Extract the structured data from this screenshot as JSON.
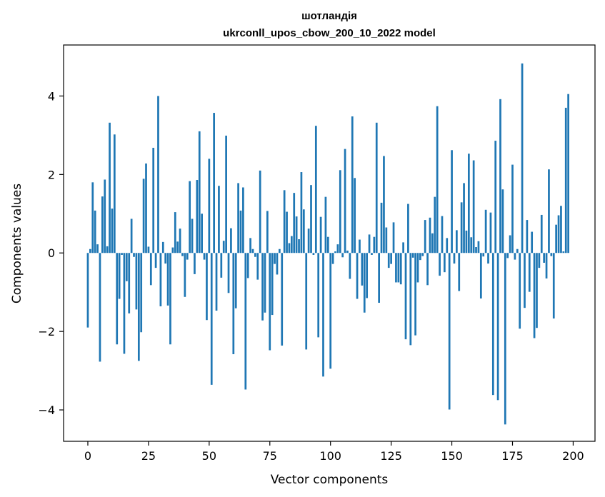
{
  "chart_data": {
    "type": "bar",
    "title_line1": "шотландія",
    "title_line2": "ukrconll_upos_cbow_200_10_2022 model",
    "xlabel": "Vector components",
    "ylabel": "Components values",
    "xlim": [
      -10,
      209
    ],
    "ylim": [
      -4.8,
      5.3
    ],
    "xticks": [
      0,
      25,
      50,
      75,
      100,
      125,
      150,
      175,
      200
    ],
    "yticks": [
      -4,
      -2,
      0,
      2,
      4
    ],
    "ytick_labels": [
      "−4",
      "−2",
      "0",
      "2",
      "4"
    ],
    "bar_color": "#1f77b4",
    "values": [
      -1.9,
      0.1,
      1.8,
      1.08,
      0.22,
      -2.77,
      1.44,
      1.87,
      0.17,
      3.32,
      1.13,
      3.02,
      -2.33,
      -1.17,
      -0.05,
      -2.57,
      -0.72,
      -1.54,
      0.87,
      -0.1,
      -1.44,
      -2.75,
      -2.02,
      1.89,
      2.28,
      0.16,
      -0.82,
      2.68,
      -0.38,
      4.0,
      -1.36,
      0.28,
      -0.27,
      -1.34,
      -2.33,
      0.14,
      1.04,
      0.29,
      0.62,
      -0.08,
      -1.12,
      -0.17,
      1.83,
      0.87,
      -0.54,
      1.86,
      3.1,
      1.0,
      -0.17,
      -1.71,
      2.4,
      -3.36,
      3.57,
      -1.47,
      1.71,
      -0.63,
      0.31,
      2.99,
      -1.02,
      0.63,
      -2.58,
      -1.41,
      1.78,
      1.08,
      1.67,
      -3.48,
      -0.64,
      0.38,
      0.1,
      -0.1,
      -0.68,
      2.1,
      -1.72,
      -1.52,
      1.07,
      -2.48,
      -1.58,
      -0.28,
      -0.55,
      0.1,
      -2.36,
      1.6,
      1.05,
      0.25,
      0.43,
      1.53,
      0.93,
      0.35,
      2.06,
      1.11,
      -2.46,
      0.62,
      1.73,
      -0.05,
      3.24,
      -2.15,
      0.92,
      -3.15,
      1.43,
      0.41,
      -2.95,
      -0.28,
      0.04,
      0.22,
      2.11,
      -0.11,
      2.65,
      0.06,
      -0.66,
      3.48,
      1.91,
      -1.17,
      0.34,
      -0.83,
      -1.52,
      -1.15,
      0.47,
      -0.05,
      0.41,
      3.32,
      -1.27,
      1.28,
      2.47,
      0.65,
      -0.38,
      -0.28,
      0.78,
      -0.75,
      -0.75,
      -0.8,
      0.27,
      -2.2,
      1.25,
      -2.35,
      -0.12,
      -2.1,
      -0.75,
      -0.18,
      -0.08,
      0.84,
      -0.82,
      0.9,
      0.5,
      1.43,
      3.74,
      -0.58,
      0.94,
      -0.49,
      0.38,
      -3.99,
      2.62,
      -0.27,
      0.58,
      -0.97,
      1.29,
      1.78,
      0.57,
      2.53,
      0.4,
      2.36,
      0.15,
      0.3,
      -1.16,
      -0.09,
      1.1,
      -0.27,
      1.03,
      -3.62,
      2.86,
      -3.75,
      3.92,
      1.62,
      -4.37,
      -0.13,
      0.45,
      2.25,
      -0.17,
      0.1,
      -1.93,
      4.83,
      -1.4,
      0.84,
      -0.99,
      0.54,
      -2.17,
      -1.91,
      -0.38,
      0.97,
      -0.25,
      -0.65,
      2.13,
      -0.08,
      -1.67,
      0.72,
      0.96,
      1.2,
      0.04,
      3.7,
      4.05
    ]
  }
}
